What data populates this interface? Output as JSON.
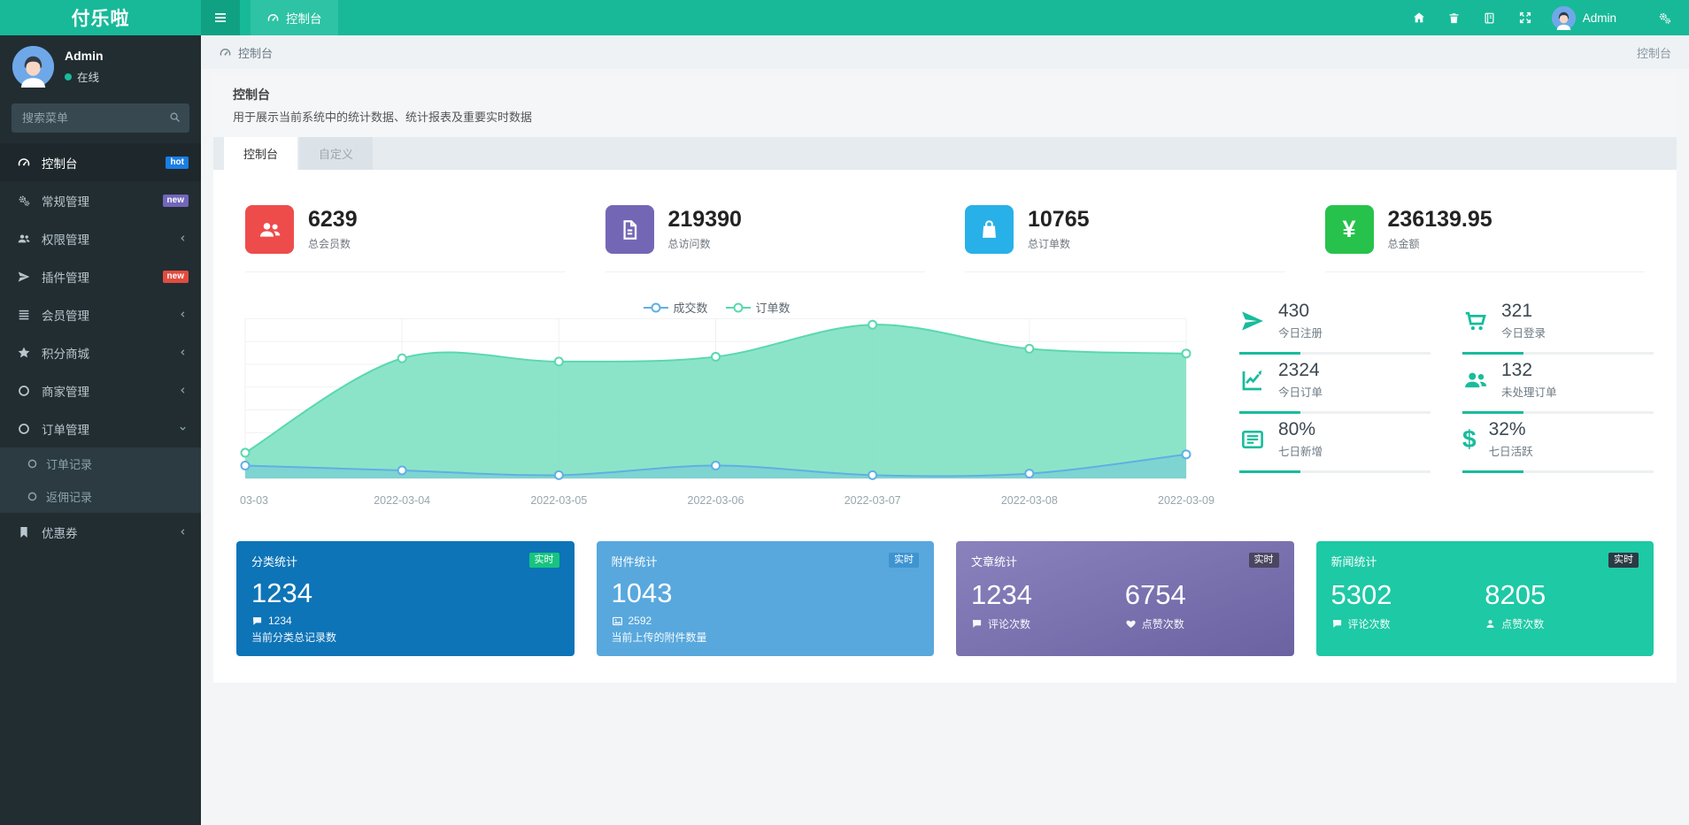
{
  "navbar": {
    "brand": "付乐啦",
    "tab": "控制台",
    "user_name": "Admin",
    "icons": [
      "home",
      "trash",
      "book",
      "fullscreen",
      "settings"
    ]
  },
  "sidebar": {
    "user": {
      "name": "Admin",
      "status": "在线"
    },
    "search_placeholder": "搜索菜单",
    "items": [
      {
        "label": "控制台",
        "icon": "gauge",
        "badge": "hot",
        "badge_color": "#1a7ee3",
        "active": true
      },
      {
        "label": "常规管理",
        "icon": "cogs",
        "badge": "new",
        "badge_color": "#7266ba"
      },
      {
        "label": "权限管理",
        "icon": "users",
        "chevron": "left"
      },
      {
        "label": "插件管理",
        "icon": "rocket",
        "badge": "new",
        "badge_color": "#e04c3f"
      },
      {
        "label": "会员管理",
        "icon": "list",
        "chevron": "left"
      },
      {
        "label": "积分商城",
        "icon": "star",
        "chevron": "left"
      },
      {
        "label": "商家管理",
        "icon": "circle",
        "chevron": "left"
      },
      {
        "label": "订单管理",
        "icon": "circle",
        "chevron": "down",
        "expanded": true,
        "children": [
          {
            "label": "订单记录"
          },
          {
            "label": "返佣记录"
          }
        ]
      },
      {
        "label": "优惠券",
        "icon": "bookmark",
        "chevron": "left"
      }
    ]
  },
  "breadcrumb": {
    "location": "控制台",
    "right": "控制台"
  },
  "page": {
    "title": "控制台",
    "subtitle": "用于展示当前系统中的统计数据、统计报表及重要实时数据",
    "tabs": [
      {
        "label": "控制台",
        "active": true
      },
      {
        "label": "自定义",
        "active": false
      }
    ]
  },
  "stats": [
    {
      "value": "6239",
      "label": "总会员数",
      "icon": "users",
      "tile": "#ee4c4b"
    },
    {
      "value": "219390",
      "label": "总访问数",
      "icon": "file",
      "tile": "#7367b5"
    },
    {
      "value": "10765",
      "label": "总订单数",
      "icon": "bag",
      "tile": "#28b0e8"
    },
    {
      "value": "236139.95",
      "label": "总金额",
      "icon": "yen",
      "tile": "#27c24c",
      "yen": "¥"
    }
  ],
  "chart_data": {
    "type": "area",
    "categories": [
      "03-03",
      "2022-03-04",
      "2022-03-05",
      "2022-03-06",
      "2022-03-07",
      "2022-03-08",
      "2022-03-09"
    ],
    "series": [
      {
        "name": "成交数",
        "color": "#5fb0e4",
        "fill": "rgba(95,176,228,0.30)",
        "values": [
          8,
          5,
          2,
          8,
          2,
          3,
          15
        ]
      },
      {
        "name": "订单数",
        "color": "#5ad8b0",
        "fill": "rgba(124,224,192,0.88)",
        "values": [
          16,
          75,
          73,
          76,
          96,
          81,
          78
        ]
      }
    ],
    "ylim": [
      0,
      100
    ],
    "values_estimated_from_pixels": true,
    "y_axis_labels_visible": false,
    "legend_position": "top-center",
    "grid": true,
    "smooth": true
  },
  "mini_stats": [
    {
      "value": "430",
      "label": "今日注册",
      "icon": "rocket"
    },
    {
      "value": "321",
      "label": "今日登录",
      "icon": "cart"
    },
    {
      "value": "2324",
      "label": "今日订单",
      "icon": "chart-line"
    },
    {
      "value": "132",
      "label": "未处理订单",
      "icon": "users"
    },
    {
      "value": "80%",
      "label": "七日新增",
      "icon": "news"
    },
    {
      "value": "32%",
      "label": "七日活跃",
      "icon": "dollar"
    }
  ],
  "cards": [
    {
      "title": "分类统计",
      "badge": "实时",
      "bg": "#0d74b7",
      "badge_bg": "#16c57e",
      "value": "1234",
      "sub_icon": "comment",
      "sub_value": "1234",
      "desc": "当前分类总记录数"
    },
    {
      "title": "附件统计",
      "badge": "实时",
      "bg": "#58a8dd",
      "badge_bg": "#3e94d1",
      "value": "1043",
      "sub_icon": "image",
      "sub_value": "2592",
      "desc": "当前上传的附件数量"
    },
    {
      "title": "文章统计",
      "badge": "实时",
      "bg": "linear-gradient(160deg,#8a82bd,#6b62a2)",
      "badge_bg": "#4a4660",
      "cols": [
        {
          "value": "1234",
          "icon": "comment",
          "label": "评论次数"
        },
        {
          "value": "6754",
          "icon": "heart",
          "label": "点赞次数"
        }
      ]
    },
    {
      "title": "新闻统计",
      "badge": "实时",
      "bg": "#1ec9a5",
      "badge_bg": "#2b3a44",
      "cols": [
        {
          "value": "5302",
          "icon": "comment",
          "label": "评论次数"
        },
        {
          "value": "8205",
          "icon": "user",
          "label": "点赞次数"
        }
      ]
    }
  ],
  "colors": {
    "primary": "#18bc9c",
    "navbar": "#18b998",
    "sidebar_bg": "#222d32",
    "sidebar_active_bg": "#1e282c",
    "submenu_bg": "#2c3b41",
    "content_bg": "#f3f5f7"
  }
}
